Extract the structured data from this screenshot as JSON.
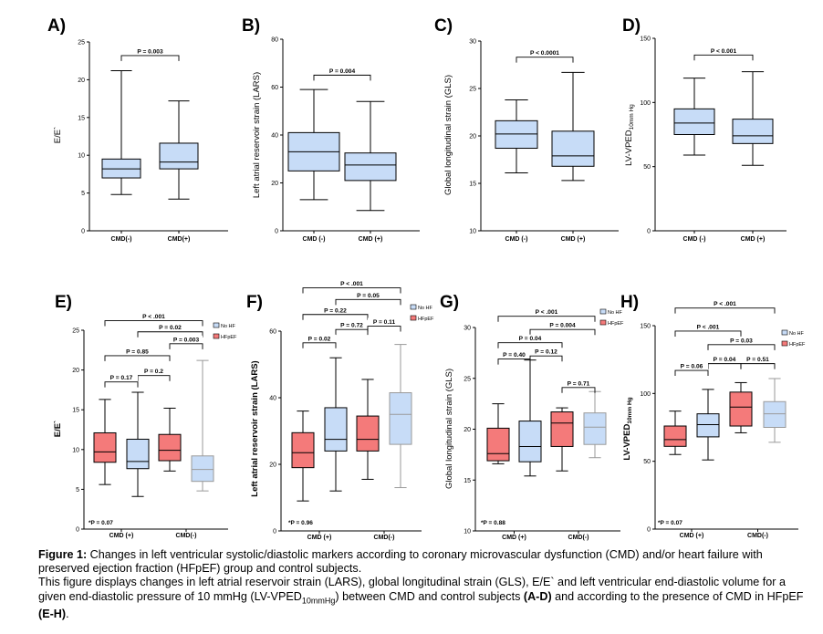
{
  "colors": {
    "cmd_box": "#c7dcf7",
    "hfpef_box": "#f47a7a",
    "nohf_box": "#c7dcf7",
    "grey_line": "#9a9a9a"
  },
  "chart_data": [
    {
      "type": "box",
      "panel": "A)",
      "ylabel": "E/E`",
      "ylim": [
        0,
        25
      ],
      "yticks": [
        0,
        5,
        10,
        15,
        20,
        25
      ],
      "yticklabels": [
        "0",
        "5",
        "10",
        "15",
        "20",
        "25"
      ],
      "categories": [
        "CMD(-)",
        "CMD(+)"
      ],
      "boxes": [
        {
          "min": 4.8,
          "q1": 7,
          "median": 8.2,
          "q3": 9.5,
          "max": 21.2
        },
        {
          "min": 4.2,
          "q1": 8.2,
          "median": 9.1,
          "q3": 11.6,
          "max": 17.2
        }
      ],
      "annotations": [
        {
          "text": "P = 0.003",
          "from": 0,
          "to": 1,
          "y": 23.2
        }
      ]
    },
    {
      "type": "box",
      "panel": "B)",
      "ylabel": "Left atrial reservoir strain (LARS)",
      "ylim": [
        0,
        80
      ],
      "yticks": [
        0,
        20,
        40,
        60,
        80
      ],
      "yticklabels": [
        "0",
        "20",
        "40",
        "60",
        "80"
      ],
      "categories": [
        "CMD (-)",
        "CMD (+)"
      ],
      "boxes": [
        {
          "min": 13,
          "q1": 25,
          "median": 33,
          "q3": 41,
          "max": 59
        },
        {
          "min": 8.5,
          "q1": 21,
          "median": 27.5,
          "q3": 32.5,
          "max": 54
        }
      ],
      "annotations": [
        {
          "text": "P = 0.004",
          "from": 0,
          "to": 1,
          "y": 65
        }
      ]
    },
    {
      "type": "box",
      "panel": "C)",
      "ylabel": "Global longitudinal strain (GLS)",
      "ylim": [
        10,
        30
      ],
      "yticks": [
        10,
        15,
        20,
        25,
        30
      ],
      "yticklabels": [
        "10",
        "15",
        "20",
        "25",
        "30"
      ],
      "categories": [
        "CMD (-)",
        "CMD (+)"
      ],
      "boxes": [
        {
          "min": 16.1,
          "q1": 18.7,
          "median": 20.2,
          "q3": 21.6,
          "max": 23.8
        },
        {
          "min": 15.3,
          "q1": 16.8,
          "median": 17.9,
          "q3": 20.5,
          "max": 26.7
        }
      ],
      "annotations": [
        {
          "text": "P < 0.0001",
          "from": 0,
          "to": 1,
          "y": 28.3
        }
      ]
    },
    {
      "type": "box",
      "panel": "D)",
      "ylabel": "LV-VPED",
      "ylabel_sub": "10mm Hg",
      "ylim": [
        0,
        150
      ],
      "yticks": [
        0,
        50,
        100,
        150
      ],
      "yticklabels": [
        "0",
        "50",
        "100",
        "150"
      ],
      "categories": [
        "CMD (-)",
        "CMD (+)"
      ],
      "boxes": [
        {
          "min": 59,
          "q1": 75,
          "median": 84,
          "q3": 95,
          "max": 119
        },
        {
          "min": 51,
          "q1": 68,
          "median": 74,
          "q3": 87,
          "max": 124
        }
      ],
      "annotations": [
        {
          "text": "P < 0.001",
          "from": 0,
          "to": 1,
          "y": 137
        }
      ]
    },
    {
      "type": "box",
      "panel": "E)",
      "ylabel": "E/E`",
      "ylim": [
        0,
        25
      ],
      "yticks": [
        0,
        5,
        10,
        15,
        20,
        25
      ],
      "yticklabels": [
        "0",
        "5",
        "10",
        "15",
        "20",
        "25"
      ],
      "groups": [
        {
          "label": "CMD (+)",
          "from": 0,
          "to": 1
        },
        {
          "label": "CMD(-)",
          "from": 2,
          "to": 3
        }
      ],
      "legend": [
        "No HF",
        "HFpEF"
      ],
      "boxes": [
        {
          "series": "HFpEF",
          "min": 5.6,
          "q1": 8.4,
          "median": 9.7,
          "q3": 12.1,
          "max": 16.3
        },
        {
          "series": "No HF",
          "min": 4.1,
          "q1": 7.6,
          "median": 8.5,
          "q3": 11.3,
          "max": 17.2
        },
        {
          "series": "HFpEF",
          "min": 7.3,
          "q1": 8.6,
          "median": 9.9,
          "q3": 11.9,
          "max": 15.2
        },
        {
          "series": "No HF",
          "min": 4.8,
          "q1": 6.0,
          "median": 7.5,
          "q3": 9.2,
          "max": 21.2
        }
      ],
      "annotations": [
        {
          "text": "P < .001",
          "from": 0,
          "to": 3,
          "y": 26.2
        },
        {
          "text": "P = 0.02",
          "from": 1,
          "to": 3,
          "y": 24.8
        },
        {
          "text": "P = 0.003",
          "from": 2,
          "to": 3,
          "y": 23.3
        },
        {
          "text": "P = 0.85",
          "from": 0,
          "to": 2,
          "y": 21.8
        },
        {
          "text": "P = 0.2",
          "from": 1,
          "to": 2,
          "y": 19.3
        },
        {
          "text": "P = 0.17",
          "from": 0,
          "to": 1,
          "y": 18.5
        }
      ],
      "note": "*P = 0.07"
    },
    {
      "type": "box",
      "panel": "F)",
      "ylabel": "Left atrial reservoir strain (LARS)",
      "ylim": [
        0,
        60
      ],
      "yticks": [
        0,
        20,
        40,
        60
      ],
      "yticklabels": [
        "0",
        "20",
        "40",
        "60"
      ],
      "groups": [
        {
          "label": "CMD (+)",
          "from": 0,
          "to": 1
        },
        {
          "label": "CMD(-)",
          "from": 2,
          "to": 3
        }
      ],
      "legend": [
        "No HF",
        "HFpEF"
      ],
      "boxes": [
        {
          "series": "HFpEF",
          "min": 9,
          "q1": 19,
          "median": 23.5,
          "q3": 29.5,
          "max": 36
        },
        {
          "series": "No HF",
          "min": 12,
          "q1": 24,
          "median": 27.5,
          "q3": 37,
          "max": 52
        },
        {
          "series": "HFpEF",
          "min": 15.5,
          "q1": 24,
          "median": 27.5,
          "q3": 34.5,
          "max": 45.5
        },
        {
          "series": "No HF",
          "min": 13,
          "q1": 26,
          "median": 35,
          "q3": 41.5,
          "max": 56
        }
      ],
      "annotations": [
        {
          "text": "P < .001",
          "from": 0,
          "to": 3,
          "y": 73
        },
        {
          "text": "P = 0.05",
          "from": 1,
          "to": 3,
          "y": 69.5
        },
        {
          "text": "P = 0.22",
          "from": 0,
          "to": 2,
          "y": 65
        },
        {
          "text": "P = 0.72",
          "from": 1,
          "to": 2,
          "y": 60.5
        },
        {
          "text": "P = 0.11",
          "from": 2,
          "to": 3,
          "y": 61.5
        },
        {
          "text": "P = 0.02",
          "from": 0,
          "to": 1,
          "y": 56.5
        }
      ],
      "note": "*P = 0.96"
    },
    {
      "type": "box",
      "panel": "G)",
      "ylabel": "Global longitudinal strain (GLS)",
      "ylim": [
        10,
        30
      ],
      "yticks": [
        10,
        15,
        20,
        25,
        30
      ],
      "yticklabels": [
        "10",
        "15",
        "20",
        "25",
        "30"
      ],
      "groups": [
        {
          "label": "CMD (+)",
          "from": 0,
          "to": 1
        },
        {
          "label": "CMD(-)",
          "from": 2,
          "to": 3
        }
      ],
      "legend": [
        "No HF",
        "HFpEF"
      ],
      "boxes": [
        {
          "series": "HFpEF",
          "min": 16.6,
          "q1": 16.9,
          "median": 17.6,
          "q3": 20.1,
          "max": 22.5
        },
        {
          "series": "No HF",
          "min": 15.4,
          "q1": 16.8,
          "median": 18.3,
          "q3": 20.8,
          "max": 26.8
        },
        {
          "series": "HFpEF",
          "min": 15.9,
          "q1": 18.3,
          "median": 20.6,
          "q3": 21.7,
          "max": 22.1
        },
        {
          "series": "No HF",
          "min": 17.2,
          "q1": 18.5,
          "median": 20.2,
          "q3": 21.6,
          "max": 23.7
        }
      ],
      "annotations": [
        {
          "text": "P < .001",
          "from": 0,
          "to": 3,
          "y": 31.1
        },
        {
          "text": "P = 0.004",
          "from": 1,
          "to": 3,
          "y": 29.8
        },
        {
          "text": "P = 0.04",
          "from": 0,
          "to": 2,
          "y": 28.5
        },
        {
          "text": "P = 0.40",
          "from": 0,
          "to": 1,
          "y": 26.9
        },
        {
          "text": "P = 0.12",
          "from": 1,
          "to": 2,
          "y": 27.2
        },
        {
          "text": "P = 0.71",
          "from": 2,
          "to": 3,
          "y": 24.1
        }
      ],
      "note": "*P = 0.88"
    },
    {
      "type": "box",
      "panel": "H)",
      "ylabel": "LV-VPED",
      "ylabel_sub": "10mm Hg",
      "ylim": [
        0,
        150
      ],
      "yticks": [
        0,
        50,
        100,
        150
      ],
      "yticklabels": [
        "0",
        "50",
        "100",
        "150"
      ],
      "groups": [
        {
          "label": "CMD (+)",
          "from": 0,
          "to": 1
        },
        {
          "label": "CMD(-)",
          "from": 2,
          "to": 3
        }
      ],
      "legend": [
        "No HF",
        "HFpEF"
      ],
      "boxes": [
        {
          "series": "HFpEF",
          "min": 55,
          "q1": 61,
          "median": 66,
          "q3": 76,
          "max": 87
        },
        {
          "series": "No HF",
          "min": 51,
          "q1": 68,
          "median": 77,
          "q3": 85,
          "max": 103
        },
        {
          "series": "HFpEF",
          "min": 71,
          "q1": 76,
          "median": 90,
          "q3": 101,
          "max": 108
        },
        {
          "series": "No HF",
          "min": 64,
          "q1": 75,
          "median": 85,
          "q3": 94,
          "max": 111
        }
      ],
      "annotations": [
        {
          "text": "P < .001",
          "from": 0,
          "to": 3,
          "y": 163
        },
        {
          "text": "P < .001",
          "from": 0,
          "to": 2,
          "y": 146
        },
        {
          "text": "P = 0.03",
          "from": 1,
          "to": 3,
          "y": 136
        },
        {
          "text": "P = 0.04",
          "from": 1,
          "to": 2,
          "y": 122
        },
        {
          "text": "P = 0.51",
          "from": 2,
          "to": 3,
          "y": 122
        },
        {
          "text": "P = 0.06",
          "from": 0,
          "to": 1,
          "y": 117
        }
      ],
      "note": "*P = 0.07"
    }
  ],
  "caption": {
    "title": "Figure 1:",
    "line1": " Changes in left ventricular systolic/diastolic markers according to coronary microvascular dysfunction (CMD) and/or heart failure with preserved ejection fraction (HFpEF) group and control subjects.",
    "line2a": "This figure displays changes in left atrial reservoir strain (LARS), global longitudinal strain (GLS), E/E` and left ventricular end-diastolic volume for a given end-diastolic pressure of 10 mmHg (LV-VPED",
    "line2sub": "10mmHg",
    "line2b": ") between CMD and control subjects ",
    "line2bold1": "(A-D)",
    "line2c": " and according to the presence of CMD in HFpEF ",
    "line2bold2": "(E-H)",
    "line2d": "."
  }
}
